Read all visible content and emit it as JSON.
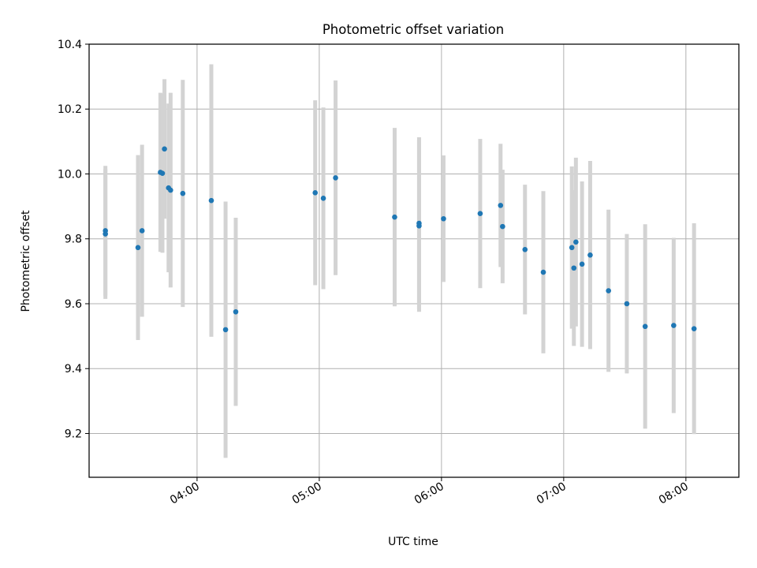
{
  "chart_data": {
    "type": "scatter",
    "title": "Photometric offset variation",
    "xlabel": "UTC time",
    "ylabel": "Photometric offset",
    "x_ticks": [
      "04:00",
      "05:00",
      "06:00",
      "07:00",
      "08:00"
    ],
    "y_ticks": [
      "9.2",
      "9.4",
      "9.6",
      "9.8",
      "10.0",
      "10.2",
      "10.4"
    ],
    "xlim": [
      "03:07",
      "08:26"
    ],
    "ylim": [
      9.065,
      10.4
    ],
    "grid": true,
    "colors": {
      "point": "#1f77b4",
      "errorbar": "#d3d3d3",
      "grid": "#b0b0b0"
    },
    "points": [
      {
        "x": "03:15",
        "y": 9.825,
        "err": 0.2
      },
      {
        "x": "03:15",
        "y": 9.815,
        "err": 0.2
      },
      {
        "x": "03:31",
        "y": 9.773,
        "err": 0.285
      },
      {
        "x": "03:33",
        "y": 9.825,
        "err": 0.265
      },
      {
        "x": "03:42",
        "y": 10.005,
        "err": 0.245
      },
      {
        "x": "03:43",
        "y": 10.002,
        "err": 0.245
      },
      {
        "x": "03:44",
        "y": 10.077,
        "err": 0.215
      },
      {
        "x": "03:46",
        "y": 9.957,
        "err": 0.26
      },
      {
        "x": "03:47",
        "y": 9.95,
        "err": 0.3
      },
      {
        "x": "03:53",
        "y": 9.94,
        "err": 0.35
      },
      {
        "x": "04:07",
        "y": 9.918,
        "err": 0.42
      },
      {
        "x": "04:14",
        "y": 9.52,
        "err": 0.395
      },
      {
        "x": "04:19",
        "y": 9.575,
        "err": 0.29
      },
      {
        "x": "04:58",
        "y": 9.942,
        "err": 0.285
      },
      {
        "x": "05:02",
        "y": 9.925,
        "err": 0.28
      },
      {
        "x": "05:08",
        "y": 9.988,
        "err": 0.3
      },
      {
        "x": "05:37",
        "y": 9.867,
        "err": 0.275
      },
      {
        "x": "05:49",
        "y": 9.848,
        "err": 0.265
      },
      {
        "x": "05:49",
        "y": 9.84,
        "err": 0.265
      },
      {
        "x": "06:01",
        "y": 9.862,
        "err": 0.195
      },
      {
        "x": "06:19",
        "y": 9.878,
        "err": 0.23
      },
      {
        "x": "06:29",
        "y": 9.903,
        "err": 0.19
      },
      {
        "x": "06:30",
        "y": 9.838,
        "err": 0.175
      },
      {
        "x": "06:41",
        "y": 9.767,
        "err": 0.2
      },
      {
        "x": "06:50",
        "y": 9.697,
        "err": 0.25
      },
      {
        "x": "07:04",
        "y": 9.773,
        "err": 0.25
      },
      {
        "x": "07:05",
        "y": 9.71,
        "err": 0.24
      },
      {
        "x": "07:06",
        "y": 9.79,
        "err": 0.26
      },
      {
        "x": "07:09",
        "y": 9.722,
        "err": 0.255
      },
      {
        "x": "07:13",
        "y": 9.75,
        "err": 0.29
      },
      {
        "x": "07:22",
        "y": 9.64,
        "err": 0.25
      },
      {
        "x": "07:31",
        "y": 9.6,
        "err": 0.215
      },
      {
        "x": "07:40",
        "y": 9.53,
        "err": 0.315
      },
      {
        "x": "07:54",
        "y": 9.533,
        "err": 0.27
      },
      {
        "x": "08:04",
        "y": 9.523,
        "err": 0.325
      }
    ]
  }
}
